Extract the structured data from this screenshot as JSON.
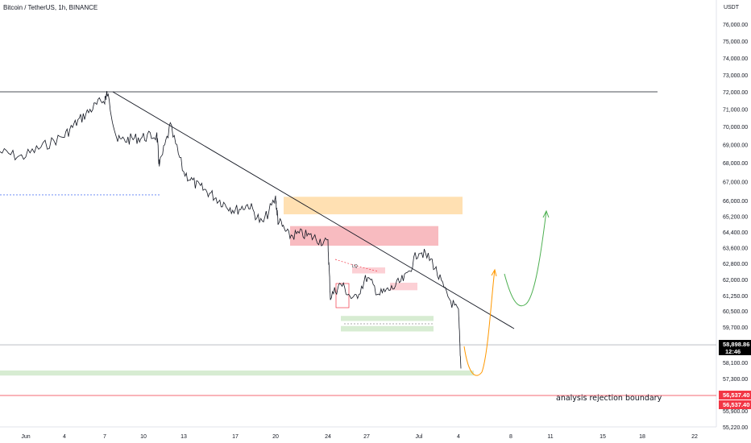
{
  "header": {
    "title": "Bitcoin / TetherUS, 1h, BINANCE",
    "currency": "USDT"
  },
  "chart_data": {
    "type": "line",
    "chart_kind": "candlestick price chart with annotations",
    "price_axis": {
      "side": "right",
      "ticks": [
        "76,000.00",
        "75,000.00",
        "74,000.00",
        "73,000.00",
        "72,000.00",
        "71,000.00",
        "70,000.00",
        "69,000.00",
        "68,000.00",
        "67,000.00",
        "66,000.00",
        "65,200.00",
        "64,400.00",
        "63,600.00",
        "62,800.00",
        "62,000.00",
        "61,250.00",
        "60,500.00",
        "59,700.00",
        "58,100.00",
        "57,300.00",
        "55,900.00",
        "55,220.00"
      ]
    },
    "time_axis": {
      "ticks": [
        "Jun",
        "4",
        "7",
        "10",
        "13",
        "17",
        "20",
        "24",
        "27",
        "Jul",
        "4",
        "8",
        "11",
        "15",
        "18",
        "22"
      ]
    },
    "last_price": {
      "value": "58,898.86",
      "countdown": "12:46",
      "color": "#000000"
    },
    "rejection_level": {
      "value": "56,537.40",
      "duplicate": "56,537.40",
      "color": "#f23645"
    },
    "annotation": "analysis rejection boundary",
    "marker_label": "LQ",
    "price_series": {
      "name": "BTCUSDT 1h",
      "x": [
        "Jun 01",
        "Jun 02",
        "Jun 03",
        "Jun 04",
        "Jun 05",
        "Jun 06",
        "Jun 07",
        "Jun 07",
        "Jun 08",
        "Jun 09",
        "Jun 10",
        "Jun 11",
        "Jun 11",
        "Jun 12",
        "Jun 13",
        "Jun 14",
        "Jun 15",
        "Jun 16",
        "Jun 17",
        "Jun 18",
        "Jun 19",
        "Jun 20",
        "Jun 20",
        "Jun 21",
        "Jun 22",
        "Jun 23",
        "Jun 24",
        "Jun 24",
        "Jun 25",
        "Jun 26",
        "Jun 27",
        "Jun 28",
        "Jun 29",
        "Jun 30",
        "Jul 01",
        "Jul 02",
        "Jul 03",
        "Jul 04",
        "Jul 04"
      ],
      "y": [
        68600,
        68300,
        68900,
        69500,
        70300,
        71000,
        71600,
        71900,
        69200,
        69300,
        69400,
        69500,
        67800,
        70000,
        67500,
        66800,
        66400,
        65900,
        65500,
        65800,
        64800,
        66100,
        65000,
        64200,
        64300,
        64100,
        63800,
        61200,
        61800,
        61000,
        62100,
        61300,
        61600,
        62100,
        63500,
        62900,
        61400,
        60400,
        57800
      ]
    },
    "zones": [
      {
        "name": "supply zone upper",
        "from": 65300,
        "to": 66200,
        "color": "#ffe0b2"
      },
      {
        "name": "supply zone",
        "from": 63700,
        "to": 64700,
        "color": "#f8bbc0"
      },
      {
        "name": "small supply zone",
        "from": 62300,
        "to": 62600,
        "color": "#fcd0d5"
      },
      {
        "name": "small supply zone 2",
        "from": 61500,
        "to": 61850,
        "color": "#fcd0d5"
      },
      {
        "name": "demand zone",
        "from": 60000,
        "to": 60250,
        "color": "#d7ecd2"
      },
      {
        "name": "demand zone 2",
        "from": 59500,
        "to": 59750,
        "color": "#d7ecd2"
      },
      {
        "name": "demand zone low",
        "from": 57450,
        "to": 57700,
        "color": "#d7ecd2"
      }
    ],
    "grid": false,
    "accent_colors": {
      "resistance": "#000000",
      "forecast_down": "#ff9800",
      "forecast_up": "#4caf50",
      "support": "#f23645"
    }
  }
}
